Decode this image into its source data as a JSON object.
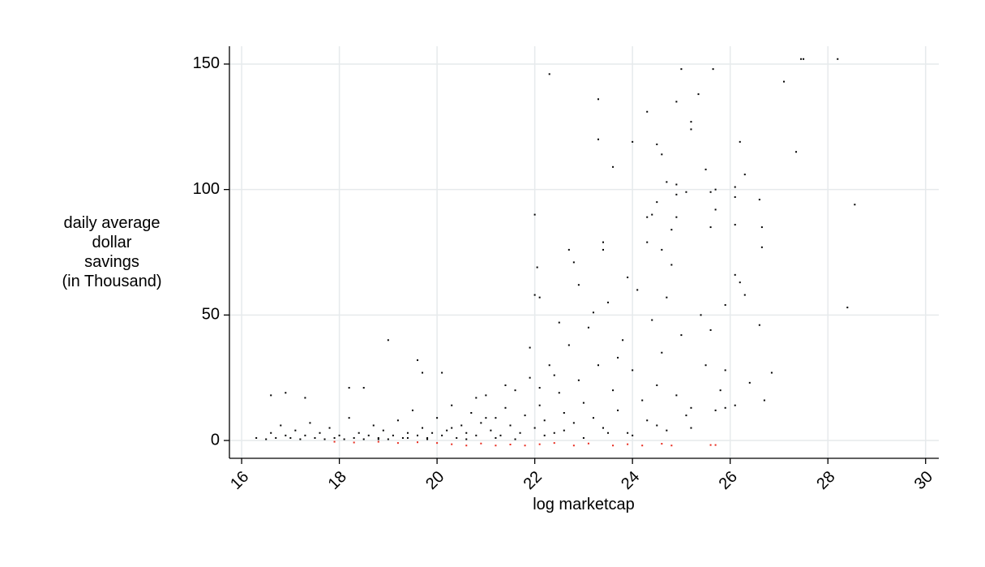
{
  "chart_data": {
    "type": "scatter",
    "x_label": "log marketcap",
    "y_label": [
      "daily average",
      "dollar",
      "savings",
      "(in Thousand)"
    ],
    "xlim": [
      15.75,
      30.27
    ],
    "ylim": [
      -7.1,
      157.1
    ],
    "xticks": [
      16,
      18,
      20,
      22,
      24,
      26,
      28,
      30
    ],
    "yticks": [
      0,
      50,
      100,
      150
    ],
    "grid": true,
    "series": [
      {
        "color": "#000000",
        "x": [
          16.3,
          16.5,
          16.6,
          16.7,
          16.8,
          16.9,
          17.0,
          17.1,
          17.2,
          17.3,
          17.4,
          17.5,
          17.6,
          17.7,
          17.8,
          17.9,
          18.0,
          18.1,
          18.2,
          18.3,
          18.4,
          18.5,
          18.6,
          18.7,
          18.8,
          18.9,
          19.0,
          19.1,
          19.2,
          19.3,
          19.4,
          19.5,
          19.6,
          19.7,
          19.8,
          19.9,
          20.0,
          20.1,
          20.2,
          20.3,
          20.4,
          20.5,
          20.6,
          20.7,
          20.8,
          20.9,
          21.0,
          21.1,
          21.2,
          21.3,
          21.4,
          21.5,
          21.6,
          21.7,
          21.8,
          21.9,
          22.0,
          22.1,
          22.2,
          22.3,
          22.4,
          22.5,
          22.6,
          22.7,
          22.8,
          22.9,
          23.0,
          23.1,
          23.2,
          23.3,
          23.4,
          23.5,
          23.6,
          23.7,
          23.8,
          23.9,
          24.0,
          24.1,
          24.2,
          24.3,
          24.4,
          24.5,
          24.6,
          24.7,
          24.8,
          24.9,
          25.0,
          25.1,
          25.2,
          22.2,
          22.6,
          23.0,
          23.5,
          24.0,
          24.5,
          21.2,
          21.6,
          20.6,
          19.8,
          22.9,
          23.9,
          24.3,
          22.5,
          21.9,
          23.2,
          24.7,
          25.4,
          25.6,
          25.5,
          25.8,
          25.9,
          22.4,
          22.1,
          23.7,
          21.4,
          20.8,
          21.0,
          20.3,
          19.4,
          18.8,
          22.3,
          23.3,
          23.3,
          23.6,
          24.3,
          24.0,
          24.5,
          24.6,
          24.9,
          25.0,
          25.2,
          25.2,
          25.35,
          25.65,
          26.2,
          26.3,
          27.1,
          27.45,
          27.5,
          28.2,
          27.35,
          28.55,
          28.4,
          26.85,
          26.7,
          26.6,
          26.65,
          26.65,
          26.6,
          26.1,
          26.1,
          25.5,
          25.6,
          25.7,
          25.7,
          25.1,
          24.7,
          24.9,
          24.9,
          24.5,
          24.4,
          24.3,
          23.4,
          23.4,
          22.7,
          22.8,
          22.0,
          22.05,
          22.0,
          22.1,
          19.0,
          19.6,
          19.7,
          20.1,
          18.2,
          18.5,
          16.6,
          16.9,
          17.3,
          24.6,
          24.9,
          24.8,
          25.6,
          26.1,
          25.9,
          26.1,
          26.2,
          26.3,
          26.1,
          25.9,
          26.4,
          25.7,
          25.2
        ],
        "values": [
          1,
          0.5,
          3,
          1,
          6,
          2,
          1,
          4,
          0.5,
          2,
          7,
          1,
          3,
          0.5,
          5,
          1,
          2,
          0.5,
          9,
          1,
          3,
          0.5,
          2,
          6,
          1,
          4,
          0.5,
          2,
          8,
          1,
          3,
          12,
          2,
          5,
          1,
          3,
          9,
          2,
          4,
          14,
          1,
          6,
          3,
          11,
          2,
          7,
          18,
          4,
          9,
          2,
          13,
          6,
          20,
          3,
          10,
          25,
          5,
          14,
          8,
          30,
          3,
          19,
          11,
          38,
          7,
          24,
          15,
          45,
          9,
          30,
          5,
          55,
          20,
          12,
          40,
          3,
          28,
          60,
          16,
          8,
          48,
          22,
          35,
          4,
          70,
          18,
          42,
          10,
          5,
          2,
          4,
          1,
          3,
          2,
          6,
          1,
          0.5,
          0.5,
          0.5,
          62,
          65,
          79,
          47,
          37,
          51,
          57,
          50,
          44,
          30,
          20,
          28,
          26,
          21,
          33,
          22,
          17,
          9,
          5,
          1,
          0.5,
          146,
          136,
          120,
          109,
          131,
          119,
          118,
          114,
          135,
          148,
          127,
          124,
          138,
          148,
          119,
          106,
          143,
          152,
          152,
          152,
          115,
          94,
          53,
          27,
          16,
          46,
          77,
          85,
          96,
          97,
          101,
          108,
          99,
          100,
          92,
          99,
          103,
          102,
          98,
          95,
          90,
          89,
          79,
          76,
          76,
          71,
          90,
          69,
          58,
          57,
          40,
          32,
          27,
          27,
          21,
          21,
          18,
          19,
          17,
          76,
          89,
          84,
          85,
          86,
          54,
          66,
          63,
          58,
          14,
          13,
          23,
          12,
          13
        ]
      },
      {
        "color": "#e8291c",
        "x": [
          17.9,
          18.3,
          18.8,
          19.2,
          19.6,
          20.0,
          20.3,
          20.6,
          20.9,
          21.2,
          21.5,
          21.8,
          22.1,
          22.4,
          22.8,
          23.1,
          23.6,
          23.9,
          24.2,
          24.6,
          24.8,
          25.6,
          25.7
        ],
        "values": [
          -0.5,
          -0.8,
          -0.5,
          -1,
          -0.7,
          -1,
          -1.5,
          -2,
          -1.2,
          -2,
          -1.6,
          -2,
          -1.5,
          -1,
          -2,
          -1.2,
          -2,
          -1.5,
          -2,
          -1.3,
          -2,
          -1.8,
          -1.8
        ]
      }
    ]
  }
}
